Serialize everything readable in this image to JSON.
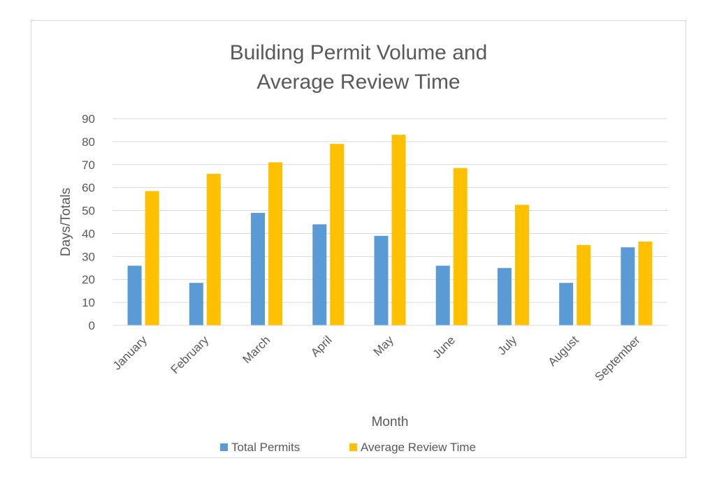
{
  "colors": {
    "total_permits": "#5b9bd5",
    "average_review_time": "#ffc000",
    "grid": "#d9d9d9",
    "frame": "#d9d9d9",
    "text": "#595959"
  },
  "chart_data": {
    "type": "bar",
    "title": [
      "Building Permit Volume and",
      "Average Review Time"
    ],
    "xlabel": "Month",
    "ylabel": "Days/Totals",
    "ylim": [
      0,
      90
    ],
    "yticks": [
      0,
      10,
      20,
      30,
      40,
      50,
      60,
      70,
      80,
      90
    ],
    "grid": true,
    "legend_position": "bottom",
    "categories": [
      "January",
      "February",
      "March",
      "April",
      "May",
      "June",
      "July",
      "August",
      "September"
    ],
    "series": [
      {
        "name": "Total Permits",
        "values": [
          26,
          18.5,
          49,
          44,
          39,
          26,
          25,
          18.5,
          34
        ]
      },
      {
        "name": "Average Review Time",
        "values": [
          58.5,
          66,
          71,
          79,
          83,
          68.5,
          52.5,
          35,
          36.5
        ]
      }
    ]
  }
}
